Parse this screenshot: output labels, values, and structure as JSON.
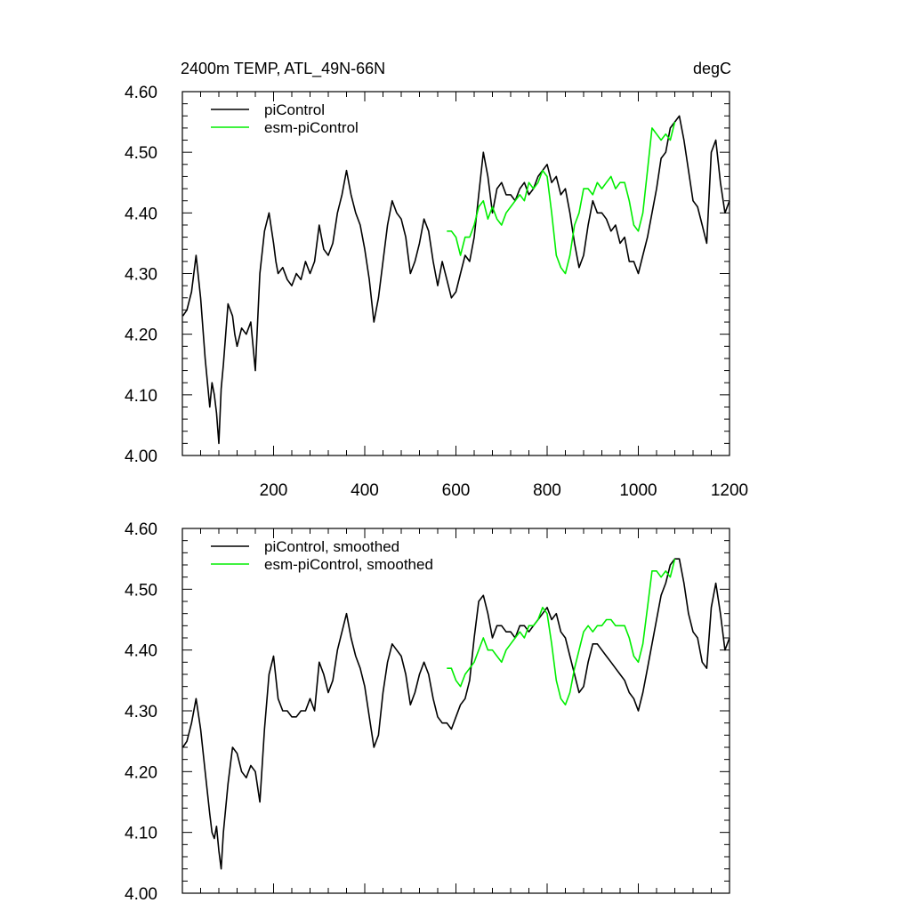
{
  "chart_data": [
    {
      "type": "line",
      "title": "2400m TEMP, ATL_49N-66N",
      "units": "degC",
      "xlabel": "",
      "ylabel": "",
      "xlim": [
        0,
        1200
      ],
      "ylim": [
        4.0,
        4.6
      ],
      "x_ticks": [
        200,
        400,
        600,
        800,
        1000,
        1200
      ],
      "y_ticks": [
        4.0,
        4.1,
        4.2,
        4.3,
        4.4,
        4.5,
        4.6
      ],
      "y_tick_labels": [
        "4.00",
        "4.10",
        "4.20",
        "4.30",
        "4.40",
        "4.50",
        "4.60"
      ],
      "x_tick_labels": [
        "200",
        "400",
        "600",
        "800",
        "1000",
        "1200"
      ],
      "legend_position": "top-left",
      "series": [
        {
          "name": "piControl",
          "color": "#000000",
          "x": [
            1,
            10,
            20,
            30,
            40,
            50,
            55,
            60,
            65,
            70,
            75,
            80,
            85,
            90,
            95,
            100,
            110,
            115,
            120,
            130,
            140,
            150,
            160,
            170,
            180,
            190,
            200,
            205,
            210,
            220,
            230,
            240,
            250,
            260,
            270,
            280,
            290,
            300,
            310,
            320,
            330,
            340,
            350,
            360,
            370,
            380,
            390,
            400,
            410,
            420,
            430,
            440,
            450,
            460,
            470,
            480,
            490,
            500,
            510,
            520,
            530,
            540,
            550,
            560,
            570,
            580,
            590,
            600,
            610,
            620,
            630,
            640,
            650,
            660,
            670,
            680,
            690,
            700,
            710,
            720,
            730,
            740,
            750,
            760,
            770,
            780,
            790,
            800,
            810,
            820,
            830,
            840,
            850,
            860,
            870,
            880,
            890,
            900,
            910,
            920,
            930,
            940,
            950,
            960,
            970,
            980,
            990,
            1000,
            1010,
            1020,
            1030,
            1040,
            1050,
            1060,
            1070,
            1080,
            1090,
            1100,
            1110,
            1120,
            1130,
            1140,
            1150,
            1160,
            1170,
            1180,
            1190,
            1200
          ],
          "values": [
            4.23,
            4.24,
            4.27,
            4.33,
            4.26,
            4.16,
            4.12,
            4.08,
            4.12,
            4.1,
            4.07,
            4.02,
            4.11,
            4.15,
            4.2,
            4.25,
            4.23,
            4.2,
            4.18,
            4.21,
            4.2,
            4.22,
            4.14,
            4.3,
            4.37,
            4.4,
            4.35,
            4.32,
            4.3,
            4.31,
            4.29,
            4.28,
            4.3,
            4.29,
            4.32,
            4.3,
            4.32,
            4.38,
            4.34,
            4.33,
            4.35,
            4.4,
            4.43,
            4.47,
            4.43,
            4.4,
            4.38,
            4.34,
            4.29,
            4.22,
            4.26,
            4.32,
            4.38,
            4.42,
            4.4,
            4.39,
            4.36,
            4.3,
            4.32,
            4.35,
            4.39,
            4.37,
            4.32,
            4.28,
            4.32,
            4.29,
            4.26,
            4.27,
            4.3,
            4.33,
            4.32,
            4.36,
            4.43,
            4.5,
            4.46,
            4.4,
            4.44,
            4.45,
            4.43,
            4.43,
            4.42,
            4.44,
            4.45,
            4.43,
            4.44,
            4.46,
            4.47,
            4.48,
            4.45,
            4.46,
            4.43,
            4.44,
            4.4,
            4.35,
            4.31,
            4.33,
            4.38,
            4.42,
            4.4,
            4.4,
            4.39,
            4.37,
            4.38,
            4.35,
            4.36,
            4.32,
            4.32,
            4.3,
            4.33,
            4.36,
            4.4,
            4.44,
            4.49,
            4.5,
            4.54,
            4.55,
            4.56,
            4.52,
            4.47,
            4.42,
            4.41,
            4.38,
            4.35,
            4.5,
            4.52,
            4.45,
            4.4,
            4.42
          ]
        },
        {
          "name": "esm-piControl",
          "color": "#00ee00",
          "x": [
            580,
            590,
            600,
            610,
            620,
            630,
            640,
            650,
            660,
            670,
            680,
            690,
            700,
            710,
            720,
            730,
            740,
            750,
            760,
            770,
            780,
            790,
            800,
            810,
            820,
            830,
            840,
            850,
            860,
            870,
            880,
            890,
            900,
            910,
            920,
            930,
            940,
            950,
            960,
            970,
            980,
            990,
            1000,
            1010,
            1020,
            1030,
            1040,
            1050,
            1060,
            1070,
            1080
          ],
          "values": [
            4.37,
            4.37,
            4.36,
            4.33,
            4.36,
            4.36,
            4.38,
            4.41,
            4.42,
            4.39,
            4.41,
            4.39,
            4.38,
            4.4,
            4.41,
            4.42,
            4.43,
            4.42,
            4.45,
            4.44,
            4.45,
            4.47,
            4.46,
            4.4,
            4.33,
            4.31,
            4.3,
            4.33,
            4.38,
            4.4,
            4.44,
            4.44,
            4.43,
            4.45,
            4.44,
            4.45,
            4.46,
            4.44,
            4.45,
            4.45,
            4.42,
            4.38,
            4.37,
            4.4,
            4.47,
            4.54,
            4.53,
            4.52,
            4.53,
            4.52,
            4.55
          ]
        }
      ]
    },
    {
      "type": "line",
      "title": "",
      "xlabel": "",
      "ylabel": "",
      "xlim": [
        0,
        1200
      ],
      "ylim": [
        4.0,
        4.6
      ],
      "y_ticks": [
        4.0,
        4.1,
        4.2,
        4.3,
        4.4,
        4.5,
        4.6
      ],
      "y_tick_labels": [
        "4.00",
        "4.10",
        "4.20",
        "4.30",
        "4.40",
        "4.50",
        "4.60"
      ],
      "legend_position": "top-left",
      "series": [
        {
          "name": "piControl, smoothed",
          "color": "#000000",
          "x": [
            1,
            10,
            20,
            30,
            40,
            50,
            60,
            65,
            70,
            75,
            80,
            85,
            90,
            100,
            110,
            120,
            130,
            140,
            150,
            160,
            170,
            180,
            190,
            200,
            210,
            220,
            230,
            240,
            250,
            260,
            270,
            280,
            290,
            300,
            310,
            320,
            330,
            340,
            350,
            360,
            370,
            380,
            390,
            400,
            410,
            420,
            430,
            440,
            450,
            460,
            470,
            480,
            490,
            500,
            510,
            520,
            530,
            540,
            550,
            560,
            570,
            580,
            590,
            600,
            610,
            620,
            630,
            640,
            650,
            660,
            670,
            680,
            690,
            700,
            710,
            720,
            730,
            740,
            750,
            760,
            770,
            780,
            790,
            800,
            810,
            820,
            830,
            840,
            850,
            860,
            870,
            880,
            890,
            900,
            910,
            920,
            930,
            940,
            950,
            960,
            970,
            980,
            990,
            1000,
            1010,
            1020,
            1030,
            1040,
            1050,
            1060,
            1070,
            1080,
            1090,
            1100,
            1110,
            1120,
            1130,
            1140,
            1150,
            1160,
            1170,
            1180,
            1190,
            1200
          ],
          "values": [
            4.24,
            4.25,
            4.28,
            4.32,
            4.27,
            4.2,
            4.13,
            4.1,
            4.09,
            4.11,
            4.07,
            4.04,
            4.1,
            4.18,
            4.24,
            4.23,
            4.2,
            4.19,
            4.21,
            4.2,
            4.15,
            4.27,
            4.36,
            4.39,
            4.32,
            4.3,
            4.3,
            4.29,
            4.29,
            4.3,
            4.3,
            4.32,
            4.3,
            4.38,
            4.36,
            4.33,
            4.35,
            4.4,
            4.43,
            4.46,
            4.42,
            4.39,
            4.37,
            4.34,
            4.29,
            4.24,
            4.26,
            4.33,
            4.38,
            4.41,
            4.4,
            4.39,
            4.36,
            4.31,
            4.33,
            4.36,
            4.38,
            4.36,
            4.32,
            4.29,
            4.28,
            4.28,
            4.27,
            4.29,
            4.31,
            4.32,
            4.35,
            4.42,
            4.48,
            4.49,
            4.46,
            4.42,
            4.44,
            4.44,
            4.43,
            4.43,
            4.42,
            4.44,
            4.44,
            4.43,
            4.44,
            4.45,
            4.46,
            4.47,
            4.45,
            4.46,
            4.43,
            4.42,
            4.39,
            4.36,
            4.33,
            4.34,
            4.38,
            4.41,
            4.41,
            4.4,
            4.39,
            4.38,
            4.37,
            4.36,
            4.35,
            4.33,
            4.32,
            4.3,
            4.33,
            4.37,
            4.41,
            4.45,
            4.49,
            4.51,
            4.54,
            4.55,
            4.55,
            4.51,
            4.46,
            4.43,
            4.42,
            4.38,
            4.37,
            4.47,
            4.51,
            4.46,
            4.4,
            4.42
          ]
        },
        {
          "name": "esm-piControl, smoothed",
          "color": "#00ee00",
          "x": [
            580,
            590,
            600,
            610,
            620,
            630,
            640,
            650,
            660,
            670,
            680,
            690,
            700,
            710,
            720,
            730,
            740,
            750,
            760,
            770,
            780,
            790,
            800,
            810,
            820,
            830,
            840,
            850,
            860,
            870,
            880,
            890,
            900,
            910,
            920,
            930,
            940,
            950,
            960,
            970,
            980,
            990,
            1000,
            1010,
            1020,
            1030,
            1040,
            1050,
            1060,
            1070,
            1080
          ],
          "values": [
            4.37,
            4.37,
            4.35,
            4.34,
            4.36,
            4.37,
            4.38,
            4.4,
            4.42,
            4.4,
            4.4,
            4.39,
            4.38,
            4.4,
            4.41,
            4.42,
            4.43,
            4.42,
            4.44,
            4.44,
            4.45,
            4.47,
            4.46,
            4.41,
            4.35,
            4.32,
            4.31,
            4.33,
            4.37,
            4.4,
            4.43,
            4.44,
            4.43,
            4.44,
            4.44,
            4.45,
            4.45,
            4.44,
            4.44,
            4.44,
            4.42,
            4.39,
            4.38,
            4.41,
            4.47,
            4.53,
            4.53,
            4.52,
            4.53,
            4.52,
            4.55
          ]
        }
      ]
    }
  ]
}
